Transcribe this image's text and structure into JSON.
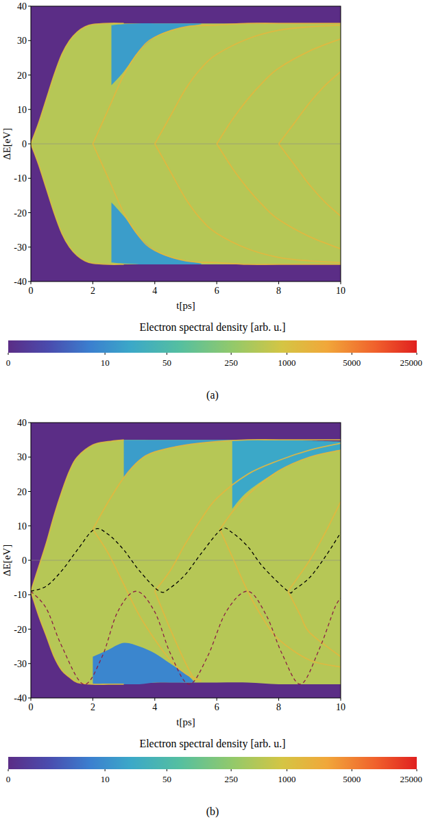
{
  "chart_data": [
    {
      "type": "density_map",
      "x_label": "t[ps]",
      "y_label": "ΔE[eV]",
      "panel_label": "(a)",
      "xlim": [
        0,
        10
      ],
      "ylim": [
        -40,
        40
      ],
      "xticks": [
        0,
        2,
        4,
        6,
        8,
        10
      ],
      "yticks": [
        -40,
        -30,
        -20,
        -10,
        0,
        10,
        20,
        30,
        40
      ],
      "hline": 0,
      "regions": [
        {
          "x": [
            0,
            0.25,
            0.5,
            0.75,
            1,
            1.25,
            1.5,
            1.75,
            2,
            2.5,
            3,
            4,
            5,
            6,
            7,
            8,
            9,
            10
          ],
          "upper": [
            0,
            6,
            13,
            20,
            26,
            30,
            32.5,
            34,
            34.7,
            35,
            35,
            35,
            35,
            35,
            35,
            35,
            35,
            35
          ],
          "lower": [
            0,
            -6,
            -13,
            -20,
            -26,
            -30,
            -32.5,
            -34,
            -34.7,
            -35,
            -35,
            -35,
            -35,
            -35,
            -35,
            -35,
            -35,
            -35
          ],
          "density": 500
        },
        {
          "x": [
            2.6,
            3,
            3.5,
            4,
            4.5,
            5,
            5.5
          ],
          "upper": [
            34.5,
            34.8,
            35,
            35,
            35,
            35,
            35
          ],
          "lower": [
            17,
            21,
            27,
            31,
            33,
            34,
            34.8
          ],
          "density": 15
        },
        {
          "x": [
            2.6,
            3,
            3.5,
            4,
            4.5,
            5,
            5.5
          ],
          "upper": [
            -17,
            -21,
            -27,
            -31,
            -33,
            -34,
            -34.8
          ],
          "lower": [
            -34.5,
            -34.8,
            -35,
            -35,
            -35,
            -35,
            -35
          ],
          "density": 15
        }
      ],
      "curves": [
        {
          "x": [
            0,
            0.25,
            0.5,
            0.75,
            1,
            1.25,
            1.5,
            1.75,
            2,
            2.5,
            3
          ],
          "values": [
            0,
            6,
            13,
            20,
            26,
            30,
            32.5,
            34,
            34.7,
            35,
            35
          ],
          "density": 1200
        },
        {
          "x": [
            0,
            0.25,
            0.5,
            0.75,
            1,
            1.25,
            1.5,
            1.75,
            2,
            2.5,
            3
          ],
          "values": [
            0,
            -6,
            -13,
            -20,
            -26,
            -30,
            -32.5,
            -34,
            -34.7,
            -35,
            -35
          ],
          "density": 1200
        },
        {
          "x": [
            2,
            2.5,
            3,
            3.5,
            4,
            5,
            6,
            7,
            8,
            10
          ],
          "values": [
            0,
            10,
            20,
            27,
            31,
            34,
            34.5,
            35,
            35,
            35
          ],
          "density": 1500
        },
        {
          "x": [
            2,
            2.5,
            3,
            3.5,
            4,
            5,
            6,
            7,
            8,
            10
          ],
          "values": [
            0,
            -10,
            -20,
            -27,
            -31,
            -34,
            -34.5,
            -35,
            -35,
            -35
          ],
          "density": 1500
        },
        {
          "x": [
            4,
            4.5,
            5,
            5.5,
            6,
            7,
            8,
            9,
            10
          ],
          "values": [
            0,
            8,
            16,
            22,
            26,
            30.5,
            33,
            34,
            34.5
          ],
          "density": 1500
        },
        {
          "x": [
            4,
            4.5,
            5,
            5.5,
            6,
            7,
            8,
            9,
            10
          ],
          "values": [
            0,
            -8,
            -16,
            -22,
            -26,
            -30.5,
            -33,
            -34,
            -34.5
          ],
          "density": 1500
        },
        {
          "x": [
            6,
            6.5,
            7,
            7.5,
            8,
            9,
            10
          ],
          "values": [
            0,
            7,
            13,
            18,
            22,
            27,
            30.5
          ],
          "density": 1500
        },
        {
          "x": [
            6,
            6.5,
            7,
            7.5,
            8,
            9,
            10
          ],
          "values": [
            0,
            -7,
            -13,
            -18,
            -22,
            -27,
            -30.5
          ],
          "density": 1500
        },
        {
          "x": [
            8,
            8.5,
            9,
            9.5,
            10
          ],
          "values": [
            0,
            6,
            12,
            17,
            21
          ],
          "density": 1500
        },
        {
          "x": [
            8,
            8.5,
            9,
            9.5,
            10
          ],
          "values": [
            0,
            -6,
            -12,
            -17,
            -21
          ],
          "density": 1500
        }
      ],
      "colorbar": {
        "label": "Electron spectral density [arb. u.]",
        "range": [
          0,
          25000
        ],
        "ticks": [
          0,
          10,
          50,
          250,
          1000,
          5000,
          25000
        ]
      }
    },
    {
      "type": "density_map",
      "x_label": "t[ps]",
      "y_label": "ΔE[eV]",
      "panel_label": "(b)",
      "xlim": [
        0,
        10
      ],
      "ylim": [
        -40,
        40
      ],
      "xticks": [
        0,
        2,
        4,
        6,
        8,
        10
      ],
      "yticks": [
        -40,
        -30,
        -20,
        -10,
        0,
        10,
        20,
        30,
        40
      ],
      "hline": 0,
      "regions": [
        {
          "x": [
            0,
            0.25,
            0.5,
            0.75,
            1,
            1.25,
            1.5,
            2,
            2.5,
            3,
            4,
            5,
            6,
            7,
            8,
            9,
            10
          ],
          "upper": [
            -9,
            -2,
            5,
            13,
            20,
            26,
            30,
            33.5,
            34.5,
            35,
            35,
            35,
            35,
            35,
            34.8,
            34.6,
            34.5
          ],
          "lower": [
            -9,
            -16,
            -22,
            -28,
            -32,
            -34,
            -35.5,
            -36,
            -36,
            -36,
            -35.5,
            -35.5,
            -35.5,
            -35.5,
            -36,
            -36,
            -36
          ],
          "density": 500
        },
        {
          "x": [
            3,
            3.5,
            4,
            5,
            6,
            7,
            8
          ],
          "upper": [
            35,
            35,
            35,
            35,
            35,
            35,
            35
          ],
          "lower": [
            24,
            29,
            31.5,
            33.5,
            34.5,
            34.8,
            34.9
          ],
          "density": 15
        },
        {
          "x": [
            6.5,
            7,
            8,
            9,
            10
          ],
          "upper": [
            34.8,
            35,
            35,
            34.8,
            34.5
          ],
          "lower": [
            15,
            20,
            26,
            30,
            32
          ],
          "density": 20
        },
        {
          "x": [
            2,
            2.5,
            3,
            3.5,
            4,
            4.5,
            5,
            5.3
          ],
          "upper": [
            -28,
            -26,
            -24,
            -25,
            -27,
            -30,
            -33,
            -35.5
          ],
          "lower": [
            -36,
            -36,
            -36,
            -36,
            -35.5,
            -35.5,
            -35.5,
            -35.5
          ],
          "density": 8
        }
      ],
      "curves": [
        {
          "x": [
            0,
            0.25,
            0.5,
            0.75,
            1,
            1.25,
            1.5,
            2,
            2.5,
            3
          ],
          "values": [
            -9,
            -2,
            5,
            13,
            20,
            26,
            30,
            33.5,
            34.5,
            35
          ],
          "density": 1200
        },
        {
          "x": [
            0,
            0.25,
            0.5,
            0.75,
            1,
            1.25,
            1.5,
            2,
            2.5,
            3
          ],
          "values": [
            -9,
            -16,
            -22,
            -28,
            -32,
            -34,
            -35.5,
            -36,
            -36,
            -36
          ],
          "density": 1200
        },
        {
          "x": [
            2,
            2.5,
            3,
            3.5,
            4,
            5,
            6,
            7,
            8,
            10
          ],
          "values": [
            9,
            17,
            24,
            29,
            31.5,
            33.5,
            34.5,
            35,
            35,
            35
          ],
          "density": 1500
        },
        {
          "x": [
            2,
            2.5,
            3,
            3.5,
            4,
            4.5,
            5,
            5.5
          ],
          "values": [
            9,
            2,
            -7,
            -16,
            -23,
            -29,
            -33,
            -35
          ],
          "density": 1500
        },
        {
          "x": [
            4,
            4.5,
            5,
            5.5,
            6,
            7,
            8,
            9,
            10
          ],
          "values": [
            -9,
            -3,
            5,
            12,
            18,
            25,
            29,
            32,
            34
          ],
          "density": 1500
        },
        {
          "x": [
            4,
            4.5,
            5,
            5.3
          ],
          "values": [
            -9,
            -20,
            -30,
            -35
          ],
          "density": 1500
        },
        {
          "x": [
            6.1,
            6.5,
            7,
            7.5,
            8,
            9,
            10
          ],
          "values": [
            9,
            1,
            -9,
            -17,
            -23,
            -29,
            -31
          ],
          "density": 1500
        },
        {
          "x": [
            6.1,
            6.5,
            7,
            8,
            9,
            10
          ],
          "values": [
            9,
            14,
            19,
            26,
            30,
            32
          ],
          "density": 1500
        },
        {
          "x": [
            8.3,
            9,
            9.5,
            10
          ],
          "values": [
            -9,
            0,
            8,
            17
          ],
          "density": 1500
        },
        {
          "x": [
            8.3,
            8.7,
            9,
            10
          ],
          "values": [
            -9,
            -16,
            -21,
            -28
          ],
          "density": 1500
        }
      ],
      "dashed": [
        {
          "x": [
            0,
            0.5,
            1,
            1.5,
            2.05,
            2.5,
            3,
            3.5,
            4.15,
            4.5,
            5,
            5.5,
            6.15,
            6.5,
            7,
            7.5,
            8.3,
            8.5,
            9,
            9.5,
            10
          ],
          "values": [
            -9,
            -7.5,
            -3,
            3,
            9,
            7.5,
            3,
            -3,
            -9,
            -8,
            -4,
            2,
            9,
            8,
            4,
            -2,
            -9,
            -8.5,
            -5,
            1,
            8
          ],
          "color": "#000000",
          "line_style": "dashed"
        },
        {
          "x": [
            0,
            0.5,
            1,
            1.7,
            2.3,
            2.8,
            3.4,
            4,
            4.5,
            5.1,
            5.7,
            6.3,
            7,
            7.6,
            8.1,
            8.7,
            9.3,
            9.8,
            10
          ],
          "values": [
            -9,
            -14,
            -25,
            -36,
            -28,
            -15,
            -9,
            -15,
            -27,
            -36,
            -28,
            -15,
            -9,
            -16,
            -27,
            -36,
            -26,
            -14,
            -11
          ],
          "color": "#8b1e46",
          "line_style": "dashed"
        }
      ],
      "colorbar": {
        "label": "Electron spectral density [arb. u.]",
        "range": [
          0,
          25000
        ],
        "ticks": [
          0,
          10,
          50,
          250,
          1000,
          5000,
          25000
        ]
      }
    }
  ]
}
